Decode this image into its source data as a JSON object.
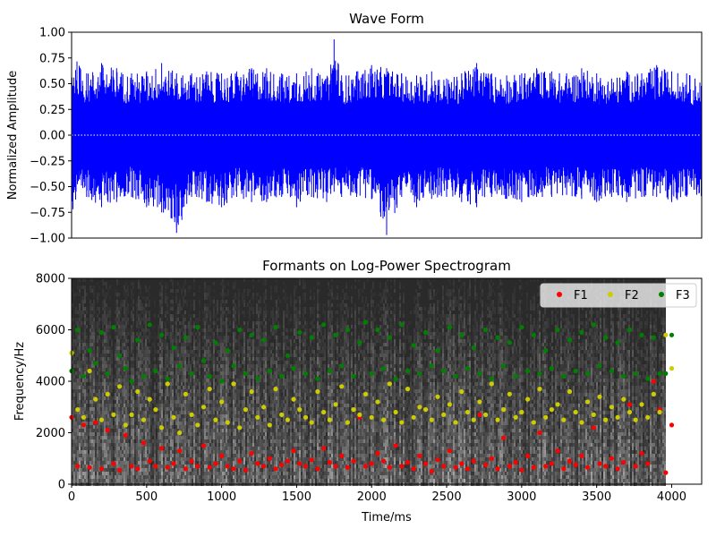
{
  "chart_data": [
    {
      "type": "line",
      "title": "Wave Form",
      "xlabel": "",
      "ylabel": "Normalized Amplitude",
      "xlim": [
        0,
        4200
      ],
      "ylim": [
        -1.0,
        1.0
      ],
      "yticks": [
        "−1.00",
        "−0.75",
        "−0.50",
        "−0.25",
        "0.00",
        "0.25",
        "0.50",
        "0.75",
        "1.00"
      ],
      "ytick_values": [
        -1.0,
        -0.75,
        -0.5,
        -0.25,
        0.0,
        0.25,
        0.5,
        0.75,
        1.0
      ],
      "grid": false,
      "series": [
        {
          "color": "#0000ff",
          "envelope_upper_x": [
            0,
            100,
            200,
            300,
            400,
            500,
            600,
            700,
            800,
            900,
            1000,
            1100,
            1200,
            1300,
            1400,
            1500,
            1600,
            1700,
            1750,
            1800,
            1900,
            2000,
            2100,
            2200,
            2300,
            2400,
            2500,
            2600,
            2700,
            2800,
            2900,
            3000,
            3100,
            3200,
            3300,
            3400,
            3500,
            3600,
            3700,
            3800,
            3900,
            4000,
            4100,
            4200
          ],
          "envelope_upper_y": [
            0.8,
            0.6,
            0.7,
            0.65,
            0.6,
            0.62,
            0.7,
            0.6,
            0.6,
            0.62,
            0.6,
            0.62,
            0.65,
            0.65,
            0.6,
            0.6,
            0.65,
            0.55,
            0.93,
            0.58,
            0.62,
            0.68,
            0.65,
            0.6,
            0.58,
            0.62,
            0.55,
            0.6,
            0.7,
            0.6,
            0.58,
            0.6,
            0.65,
            0.62,
            0.6,
            0.65,
            0.6,
            0.55,
            0.62,
            0.6,
            0.68,
            0.62,
            0.6,
            0.55
          ],
          "envelope_lower_y": [
            -0.8,
            -0.6,
            -0.7,
            -0.65,
            -0.6,
            -0.7,
            -0.75,
            -0.95,
            -0.6,
            -0.65,
            -0.7,
            -0.6,
            -0.65,
            -0.65,
            -0.6,
            -0.7,
            -0.6,
            -0.65,
            -0.55,
            -0.6,
            -0.6,
            -0.62,
            -0.97,
            -0.6,
            -0.7,
            -0.62,
            -0.6,
            -0.65,
            -0.7,
            -0.6,
            -0.62,
            -0.65,
            -0.6,
            -0.6,
            -0.58,
            -0.62,
            -0.65,
            -0.6,
            -0.65,
            -0.6,
            -0.6,
            -0.65,
            -0.6,
            -0.6
          ],
          "baseline": 0.0
        }
      ]
    },
    {
      "type": "scatter",
      "title": "Formants on Log-Power Spectrogram",
      "xlabel": "Time/ms",
      "ylabel": "Frequency/Hz",
      "xlim": [
        0,
        4200
      ],
      "ylim": [
        0,
        8000
      ],
      "xticks": [
        "0",
        "500",
        "1000",
        "1500",
        "2000",
        "2500",
        "3000",
        "3500",
        "4000"
      ],
      "xtick_values": [
        0,
        500,
        1000,
        1500,
        2000,
        2500,
        3000,
        3500,
        4000
      ],
      "yticks": [
        "0",
        "2000",
        "4000",
        "6000",
        "8000"
      ],
      "ytick_values": [
        0,
        2000,
        4000,
        6000,
        8000
      ],
      "spectrogram_xmax": 3960,
      "legend_position": "top-right",
      "series": [
        {
          "name": "F1",
          "color": "#ff0000",
          "x": [
            0,
            40,
            80,
            120,
            160,
            200,
            240,
            280,
            320,
            360,
            400,
            440,
            480,
            520,
            560,
            600,
            640,
            680,
            720,
            760,
            800,
            840,
            880,
            920,
            960,
            1000,
            1040,
            1080,
            1120,
            1160,
            1200,
            1240,
            1280,
            1320,
            1360,
            1400,
            1440,
            1480,
            1520,
            1560,
            1600,
            1640,
            1680,
            1720,
            1760,
            1800,
            1840,
            1880,
            1920,
            1960,
            2000,
            2040,
            2080,
            2120,
            2160,
            2200,
            2240,
            2280,
            2320,
            2360,
            2400,
            2440,
            2480,
            2520,
            2560,
            2600,
            2640,
            2680,
            2720,
            2760,
            2800,
            2840,
            2880,
            2920,
            2960,
            3000,
            3040,
            3080,
            3120,
            3160,
            3200,
            3240,
            3280,
            3320,
            3360,
            3400,
            3440,
            3480,
            3520,
            3560,
            3600,
            3640,
            3680,
            3720,
            3760,
            3800,
            3840,
            3880,
            3920,
            3960,
            4000
          ],
          "y": [
            2600,
            700,
            2300,
            650,
            2400,
            600,
            2100,
            800,
            550,
            1900,
            700,
            600,
            1600,
            900,
            700,
            1400,
            650,
            800,
            1300,
            600,
            900,
            700,
            1500,
            650,
            800,
            1100,
            700,
            600,
            900,
            550,
            1200,
            800,
            700,
            1000,
            600,
            750,
            900,
            1300,
            800,
            700,
            950,
            600,
            1400,
            850,
            700,
            1100,
            650,
            900,
            2600,
            700,
            800,
            1200,
            900,
            650,
            1500,
            700,
            850,
            600,
            1100,
            800,
            500,
            950,
            700,
            1300,
            650,
            800,
            600,
            900,
            2700,
            750,
            1000,
            600,
            1800,
            700,
            850,
            550,
            1100,
            650,
            2000,
            700,
            800,
            1300,
            600,
            900,
            750,
            1100,
            650,
            2200,
            800,
            700,
            1000,
            600,
            850,
            3100,
            700,
            1200,
            800,
            4000,
            2900,
            450,
            2300
          ]
        },
        {
          "name": "F2",
          "color": "#cccc00",
          "x": [
            0,
            40,
            80,
            120,
            160,
            200,
            240,
            280,
            320,
            360,
            400,
            440,
            480,
            520,
            560,
            600,
            640,
            680,
            720,
            760,
            800,
            840,
            880,
            920,
            960,
            1000,
            1040,
            1080,
            1120,
            1160,
            1200,
            1240,
            1280,
            1320,
            1360,
            1400,
            1440,
            1480,
            1520,
            1560,
            1600,
            1640,
            1680,
            1720,
            1760,
            1800,
            1840,
            1880,
            1920,
            1960,
            2000,
            2040,
            2080,
            2120,
            2160,
            2200,
            2240,
            2280,
            2320,
            2360,
            2400,
            2440,
            2480,
            2520,
            2560,
            2600,
            2640,
            2680,
            2720,
            2760,
            2800,
            2840,
            2880,
            2920,
            2960,
            3000,
            3040,
            3080,
            3120,
            3160,
            3200,
            3240,
            3280,
            3320,
            3360,
            3400,
            3440,
            3480,
            3520,
            3560,
            3600,
            3640,
            3680,
            3720,
            3760,
            3800,
            3840,
            3880,
            3920,
            3960,
            4000
          ],
          "y": [
            5100,
            2900,
            2600,
            4400,
            3300,
            2500,
            3500,
            2700,
            3800,
            2300,
            2700,
            3600,
            2500,
            3300,
            2900,
            2200,
            3900,
            2600,
            2000,
            3500,
            2700,
            2300,
            3000,
            3700,
            2500,
            3200,
            2400,
            3900,
            2200,
            2900,
            3600,
            2600,
            3000,
            2300,
            3700,
            2700,
            2500,
            3300,
            2900,
            2600,
            2400,
            3600,
            2800,
            2500,
            3100,
            3800,
            2400,
            2900,
            2700,
            3500,
            2600,
            3200,
            2500,
            3900,
            2800,
            2400,
            3700,
            2600,
            3000,
            2900,
            2500,
            3400,
            2700,
            3100,
            2400,
            3600,
            2800,
            2500,
            3200,
            2700,
            3900,
            2500,
            2900,
            3500,
            2600,
            2800,
            3300,
            2400,
            3700,
            2600,
            2900,
            3100,
            2500,
            3600,
            2800,
            2400,
            3200,
            2700,
            3400,
            2500,
            3000,
            2600,
            3300,
            2800,
            2500,
            3100,
            2600,
            3500,
            2800,
            5800,
            4500
          ]
        },
        {
          "name": "F3",
          "color": "#008000",
          "x": [
            0,
            40,
            80,
            120,
            160,
            200,
            240,
            280,
            320,
            360,
            400,
            440,
            480,
            520,
            560,
            600,
            640,
            680,
            720,
            760,
            800,
            840,
            880,
            920,
            960,
            1000,
            1040,
            1080,
            1120,
            1160,
            1200,
            1240,
            1280,
            1320,
            1360,
            1400,
            1440,
            1480,
            1520,
            1560,
            1600,
            1640,
            1680,
            1720,
            1760,
            1800,
            1840,
            1880,
            1920,
            1960,
            2000,
            2040,
            2080,
            2120,
            2160,
            2200,
            2240,
            2280,
            2320,
            2360,
            2400,
            2440,
            2480,
            2520,
            2560,
            2600,
            2640,
            2680,
            2720,
            2760,
            2800,
            2840,
            2880,
            2920,
            2960,
            3000,
            3040,
            3080,
            3120,
            3160,
            3200,
            3240,
            3280,
            3320,
            3360,
            3400,
            3440,
            3480,
            3520,
            3560,
            3600,
            3640,
            3680,
            3720,
            3760,
            3800,
            3840,
            3880,
            3920,
            3960,
            4000
          ],
          "y": [
            4400,
            6000,
            4200,
            5200,
            4700,
            5900,
            4300,
            6100,
            5000,
            4500,
            4000,
            5600,
            4200,
            6200,
            4400,
            5800,
            4100,
            5300,
            4600,
            5700,
            4300,
            6100,
            4800,
            4200,
            5500,
            4000,
            5200,
            4600,
            6000,
            4300,
            5800,
            4100,
            5600,
            4400,
            6100,
            4200,
            5000,
            4500,
            5900,
            4300,
            5700,
            4100,
            6200,
            4400,
            5800,
            4600,
            6000,
            4200,
            5500,
            6300,
            4300,
            6000,
            4500,
            5700,
            4100,
            6200,
            4400,
            5400,
            4300,
            5900,
            4600,
            5200,
            4400,
            6100,
            4200,
            5800,
            4500,
            5300,
            4300,
            6000,
            4100,
            5700,
            4600,
            5500,
            4200,
            6100,
            4400,
            5800,
            4300,
            5200,
            4500,
            6000,
            4200,
            5600,
            4400,
            5900,
            4300,
            6200,
            4600,
            5700,
            4400,
            5500,
            4200,
            6000,
            4300,
            5800,
            4100,
            5700,
            4300,
            4300,
            5800
          ]
        }
      ]
    }
  ]
}
